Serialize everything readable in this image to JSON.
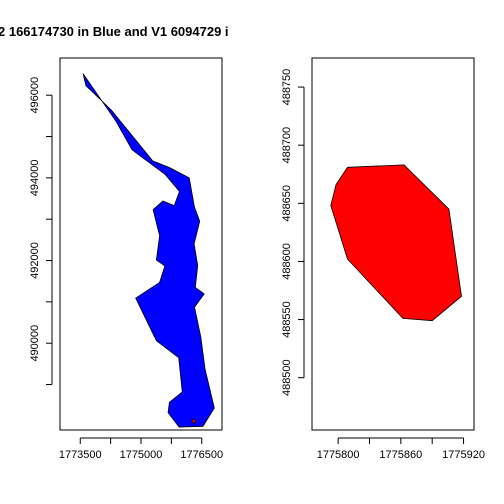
{
  "title": "2 166174730 in Blue and V1 6094729 i",
  "chart_data": [
    {
      "type": "map-polygon",
      "xlim": [
        1773000,
        1777000
      ],
      "ylim": [
        487900,
        496900
      ],
      "x_ticks": [
        1773500,
        1775000,
        1776500
      ],
      "x_tick_labels": [
        "1773500",
        "1775000",
        "1776500"
      ],
      "x_minor_ticks": [
        1774250,
        1775750
      ],
      "y_ticks": [
        490000,
        492000,
        494000,
        496000
      ],
      "y_tick_labels": [
        "490000",
        "492000",
        "494000",
        "496000"
      ],
      "y_minor_ticks": [
        489000,
        491000,
        493000,
        495000
      ],
      "series": [
        {
          "fill": "#0000ff",
          "points": [
            [
              1773570,
              496520
            ],
            [
              1773640,
              496230
            ],
            [
              1774270,
              495640
            ],
            [
              1775290,
              494410
            ],
            [
              1775700,
              494250
            ],
            [
              1776190,
              494000
            ],
            [
              1776320,
              493290
            ],
            [
              1776450,
              492950
            ],
            [
              1776310,
              492400
            ],
            [
              1776400,
              491880
            ],
            [
              1776340,
              491350
            ],
            [
              1776560,
              491190
            ],
            [
              1776320,
              490870
            ],
            [
              1776480,
              490140
            ],
            [
              1776580,
              489380
            ],
            [
              1776810,
              488430
            ],
            [
              1776530,
              487990
            ],
            [
              1775940,
              487970
            ],
            [
              1775670,
              488320
            ],
            [
              1775700,
              488570
            ],
            [
              1776020,
              488820
            ],
            [
              1775930,
              489650
            ],
            [
              1775380,
              490060
            ],
            [
              1774870,
              491090
            ],
            [
              1775460,
              491470
            ],
            [
              1775590,
              491870
            ],
            [
              1775380,
              492010
            ],
            [
              1775460,
              492600
            ],
            [
              1775300,
              493230
            ],
            [
              1775540,
              493440
            ],
            [
              1775820,
              493330
            ],
            [
              1775950,
              493670
            ],
            [
              1775600,
              494080
            ],
            [
              1774780,
              494680
            ],
            [
              1774380,
              495370
            ],
            [
              1773570,
              496520
            ]
          ]
        },
        {
          "fill": "#ff0000",
          "points": [
            [
              1776250,
              488120
            ],
            [
              1776310,
              488050
            ],
            [
              1776350,
              488110
            ],
            [
              1776300,
              488170
            ],
            [
              1776250,
              488120
            ]
          ]
        }
      ]
    },
    {
      "type": "map-polygon",
      "xlim": [
        1775775,
        1775930
      ],
      "ylim": [
        488455,
        488775
      ],
      "x_ticks": [
        1775800,
        1775860,
        1775920
      ],
      "x_tick_labels": [
        "1775800",
        "1775860",
        "1775920"
      ],
      "x_minor_ticks": [
        1775830,
        1775890
      ],
      "y_ticks": [
        488500,
        488550,
        488600,
        488650,
        488700,
        488750
      ],
      "y_tick_labels": [
        "488500",
        "488550",
        "488600",
        "488650",
        "488700",
        "488750"
      ],
      "series": [
        {
          "fill": "#ff0000",
          "points": [
            [
              1775793,
              488648
            ],
            [
              1775798,
              488666
            ],
            [
              1775809,
              488681
            ],
            [
              1775863,
              488683
            ],
            [
              1775906,
              488645
            ],
            [
              1775918,
              488570
            ],
            [
              1775890,
              488549
            ],
            [
              1775862,
              488551
            ],
            [
              1775809,
              488602
            ],
            [
              1775793,
              488648
            ]
          ]
        }
      ]
    }
  ]
}
